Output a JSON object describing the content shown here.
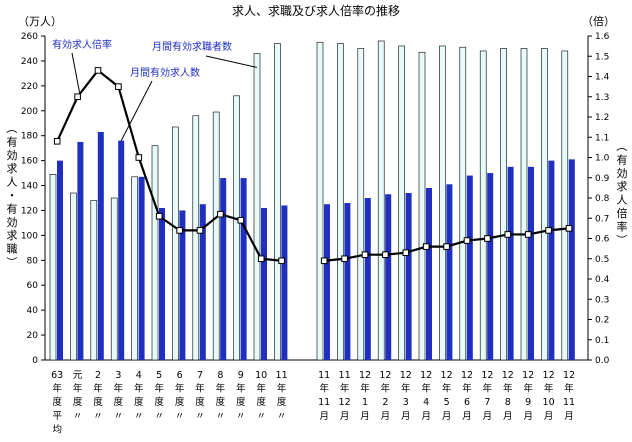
{
  "chart_data": {
    "type": "bar",
    "title": "求人、求職及び求人倍率の推移",
    "ylabel_left": "（有効求人・有効求職）",
    "ylabel_right": "（有効求人倍率）",
    "unit_left": "（万人）",
    "unit_right": "（倍）",
    "ylim_left": [
      0,
      260
    ],
    "ylim_right": [
      0,
      1.6
    ],
    "yticks_left": [
      "0",
      "20",
      "40",
      "60",
      "80",
      "100",
      "120",
      "140",
      "160",
      "180",
      "200",
      "220",
      "240",
      "260"
    ],
    "yticks_right": [
      "0.0",
      "0.1",
      "0.2",
      "0.3",
      "0.4",
      "0.5",
      "0.6",
      "0.7",
      "0.8",
      "0.9",
      "1.0",
      "1.1",
      "1.2",
      "1.3",
      "1.4",
      "1.5",
      "1.6"
    ],
    "groups": [
      {
        "categories": [
          [
            "63",
            "年",
            "度",
            "平",
            "均"
          ],
          [
            "元",
            "年",
            "度",
            "〃"
          ],
          [
            "2",
            "年",
            "度",
            "〃"
          ],
          [
            "3",
            "年",
            "度",
            "〃"
          ],
          [
            "4",
            "年",
            "度",
            "〃"
          ],
          [
            "5",
            "年",
            "度",
            "〃"
          ],
          [
            "6",
            "年",
            "度",
            "〃"
          ],
          [
            "7",
            "年",
            "度",
            "〃"
          ],
          [
            "8",
            "年",
            "度",
            "〃"
          ],
          [
            "9",
            "年",
            "度",
            "〃"
          ],
          [
            "10",
            "年",
            "度",
            "〃"
          ],
          [
            "11",
            "年",
            "度",
            "〃"
          ]
        ],
        "seekers": [
          149,
          134,
          128,
          130,
          147,
          172,
          187,
          196,
          199,
          212,
          246,
          254
        ],
        "openings": [
          160,
          175,
          183,
          176,
          147,
          122,
          120,
          125,
          146,
          146,
          122,
          124
        ],
        "ratio": [
          1.08,
          1.3,
          1.43,
          1.35,
          1.0,
          0.71,
          0.64,
          0.64,
          0.72,
          0.69,
          0.5,
          0.49
        ]
      },
      {
        "categories": [
          [
            "11",
            "年",
            "11",
            "月"
          ],
          [
            "11",
            "年",
            "12",
            "月"
          ],
          [
            "12",
            "年",
            "1",
            "月"
          ],
          [
            "12",
            "年",
            "2",
            "月"
          ],
          [
            "12",
            "年",
            "3",
            "月"
          ],
          [
            "12",
            "年",
            "4",
            "月"
          ],
          [
            "12",
            "年",
            "5",
            "月"
          ],
          [
            "12",
            "年",
            "6",
            "月"
          ],
          [
            "12",
            "年",
            "7",
            "月"
          ],
          [
            "12",
            "年",
            "8",
            "月"
          ],
          [
            "12",
            "年",
            "9",
            "月"
          ],
          [
            "12",
            "年",
            "10",
            "月"
          ],
          [
            "12",
            "年",
            "11",
            "月"
          ]
        ],
        "seekers": [
          255,
          254,
          250,
          256,
          252,
          247,
          252,
          251,
          248,
          250,
          250,
          250,
          248
        ],
        "openings": [
          125,
          126,
          130,
          133,
          134,
          138,
          141,
          148,
          150,
          155,
          155,
          160,
          161
        ],
        "ratio": [
          0.49,
          0.5,
          0.52,
          0.52,
          0.53,
          0.56,
          0.56,
          0.59,
          0.6,
          0.62,
          0.62,
          0.64,
          0.65
        ]
      }
    ],
    "series": [
      {
        "name": "月間有効求職者数",
        "key": "seekers",
        "axis": "left",
        "color": "#e6fafa",
        "stroke": "#000000"
      },
      {
        "name": "月間有効求人数",
        "key": "openings",
        "axis": "left",
        "color": "#1f2fbf"
      },
      {
        "name": "有効求人倍率",
        "key": "ratio",
        "axis": "right",
        "color": "#000000"
      }
    ],
    "annotations": [
      {
        "text": "有効求人倍率",
        "series": "ratio"
      },
      {
        "text": "月間有効求人数",
        "series": "openings"
      },
      {
        "text": "月間有効求職者数",
        "series": "seekers"
      }
    ],
    "grid": false,
    "legend": "annotations"
  }
}
